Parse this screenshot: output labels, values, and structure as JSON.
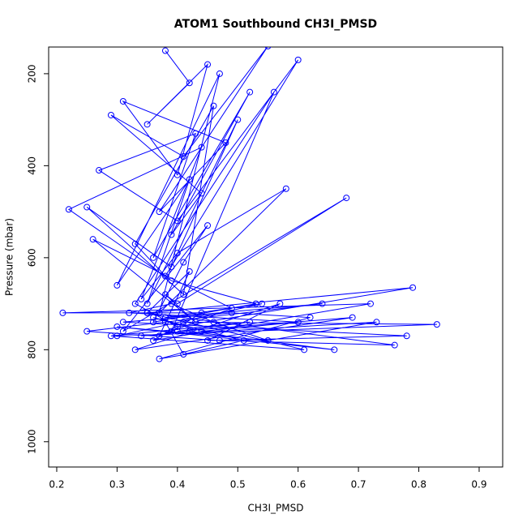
{
  "chart_data": {
    "type": "line",
    "title": "ATOM1 Southbound CH3I_PMSD",
    "xlabel": "CH3I_PMSD",
    "ylabel": "Pressure (mbar)",
    "color": "#0000ff",
    "y_reversed": true,
    "xlim": [
      0.1866,
      0.939
    ],
    "ylim": [
      142,
      1055
    ],
    "xticks": [
      0.2,
      0.3,
      0.4,
      0.5,
      0.6,
      0.7,
      0.8,
      0.9
    ],
    "yticks": [
      200,
      400,
      600,
      800,
      1000
    ],
    "x": [
      0.38,
      0.42,
      0.35,
      0.45,
      0.4,
      0.31,
      0.48,
      0.37,
      0.55,
      0.41,
      0.29,
      0.44,
      0.39,
      0.52,
      0.36,
      0.43,
      0.27,
      0.4,
      0.6,
      0.38,
      0.33,
      0.46,
      0.41,
      0.25,
      0.39,
      0.5,
      0.35,
      0.42,
      0.3,
      0.47,
      0.37,
      0.58,
      0.4,
      0.34,
      0.44,
      0.22,
      0.39,
      0.53,
      0.36,
      0.41,
      0.45,
      0.31,
      0.68,
      0.4,
      0.38,
      0.43,
      0.26,
      0.49,
      0.37,
      0.42,
      0.35,
      0.79,
      0.4,
      0.33,
      0.56,
      0.39,
      0.44,
      0.21,
      0.72,
      0.36,
      0.41,
      0.83,
      0.3,
      0.54,
      0.38,
      0.64,
      0.25,
      0.47,
      0.76,
      0.35,
      0.61,
      0.29,
      0.52,
      0.4,
      0.69,
      0.33,
      0.57,
      0.45,
      0.78,
      0.31,
      0.49,
      0.62,
      0.37,
      0.73,
      0.34,
      0.42,
      0.66,
      0.3,
      0.55,
      0.46,
      0.39,
      0.32,
      0.6,
      0.44,
      0.36,
      0.51,
      0.41,
      0.38
    ],
    "values": [
      150,
      220,
      310,
      180,
      420,
      260,
      350,
      500,
      140,
      380,
      290,
      460,
      550,
      240,
      600,
      330,
      410,
      520,
      170,
      640,
      570,
      270,
      680,
      490,
      620,
      300,
      700,
      430,
      660,
      200,
      720,
      450,
      590,
      690,
      360,
      495,
      650,
      700,
      740,
      610,
      530,
      760,
      470,
      700,
      680,
      740,
      560,
      710,
      770,
      630,
      720,
      665,
      750,
      700,
      240,
      760,
      720,
      720,
      700,
      780,
      740,
      745,
      770,
      700,
      730,
      700,
      760,
      780,
      790,
      720,
      800,
      770,
      740,
      760,
      730,
      800,
      700,
      780,
      770,
      740,
      720,
      730,
      820,
      740,
      770,
      760,
      800,
      750,
      780,
      740,
      700,
      720,
      740,
      760,
      730,
      780,
      810,
      740
    ]
  }
}
